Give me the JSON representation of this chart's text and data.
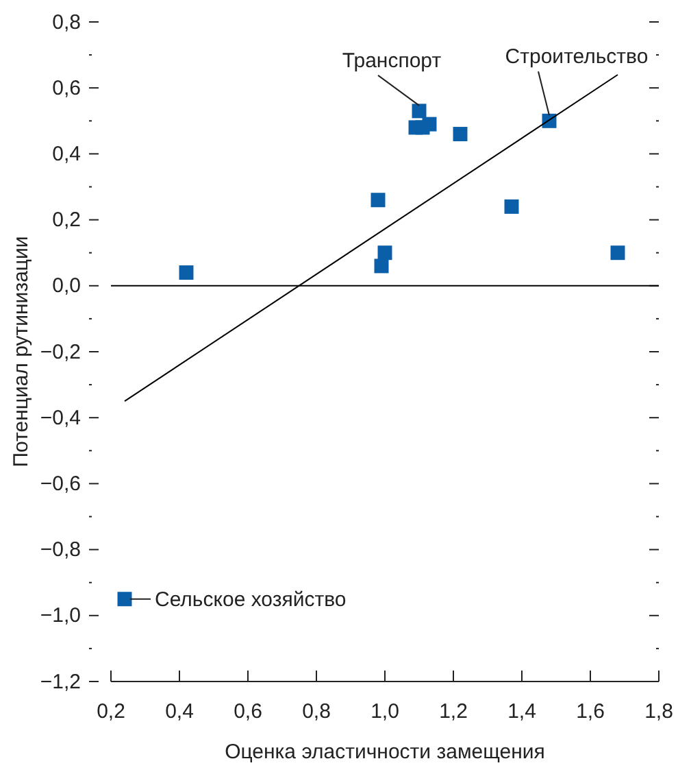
{
  "chart_data": {
    "type": "scatter",
    "xlabel": "Оценка эластичности замещения",
    "ylabel": "Потенциал рутинизации",
    "xlim": [
      0.2,
      1.8
    ],
    "ylim": [
      -1.2,
      0.8
    ],
    "xticks": [
      {
        "value": 0.2,
        "label": "0,2"
      },
      {
        "value": 0.4,
        "label": "0,4"
      },
      {
        "value": 0.6,
        "label": "0,6"
      },
      {
        "value": 0.8,
        "label": "0,8"
      },
      {
        "value": 1.0,
        "label": "1,0"
      },
      {
        "value": 1.2,
        "label": "1,2"
      },
      {
        "value": 1.4,
        "label": "1,4"
      },
      {
        "value": 1.6,
        "label": "1,6"
      },
      {
        "value": 1.8,
        "label": "1,8"
      }
    ],
    "yticks": [
      {
        "value": -1.2,
        "label": "−1,2"
      },
      {
        "value": -1.1,
        "label": null
      },
      {
        "value": -1.0,
        "label": "−1,0"
      },
      {
        "value": -0.9,
        "label": null
      },
      {
        "value": -0.8,
        "label": "−0,8"
      },
      {
        "value": -0.7,
        "label": null
      },
      {
        "value": -0.6,
        "label": "−0,6"
      },
      {
        "value": -0.5,
        "label": null
      },
      {
        "value": -0.4,
        "label": "−0,4"
      },
      {
        "value": -0.3,
        "label": null
      },
      {
        "value": -0.2,
        "label": "−0,2"
      },
      {
        "value": -0.1,
        "label": null
      },
      {
        "value": 0.0,
        "label": "0,0"
      },
      {
        "value": 0.1,
        "label": null
      },
      {
        "value": 0.2,
        "label": "0,2"
      },
      {
        "value": 0.3,
        "label": null
      },
      {
        "value": 0.4,
        "label": "0,4"
      },
      {
        "value": 0.5,
        "label": null
      },
      {
        "value": 0.6,
        "label": "0,6"
      },
      {
        "value": 0.7,
        "label": null
      },
      {
        "value": 0.8,
        "label": "0,8"
      }
    ],
    "grid": false,
    "series": [
      {
        "color": "#0a5fa8",
        "marker": "square",
        "x": [
          0.42,
          0.98,
          0.99,
          1.0,
          1.1,
          1.09,
          1.11,
          1.13,
          1.22,
          1.37,
          1.48,
          1.68,
          0.24
        ],
        "values": [
          0.04,
          0.26,
          0.06,
          0.1,
          0.53,
          0.48,
          0.48,
          0.49,
          0.46,
          0.24,
          0.5,
          0.1,
          -0.95
        ]
      },
      {
        "type": "line",
        "color": "#000000",
        "marker": "none",
        "line_style": "solid",
        "x": [
          0.24,
          1.68
        ],
        "values": [
          -0.35,
          0.64
        ]
      }
    ],
    "ref_lines": [
      {
        "axis": "y",
        "value": 0,
        "color": "#000000"
      }
    ],
    "annotations": [
      {
        "text": "Транспорт",
        "x": 1.1,
        "y": 0.53
      },
      {
        "text": "Строительство",
        "x": 1.48,
        "y": 0.5
      },
      {
        "text": "Сельское хозяйство",
        "x": 0.24,
        "y": -0.95
      }
    ]
  }
}
